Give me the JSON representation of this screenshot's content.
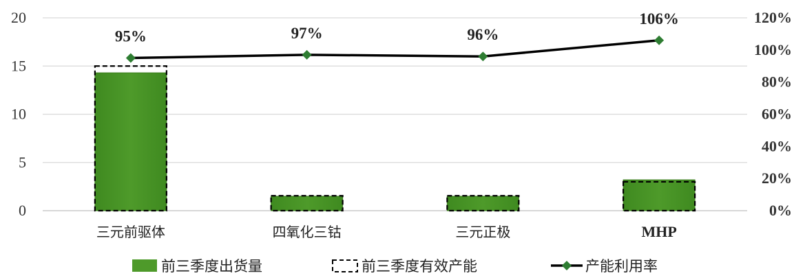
{
  "chart_data": {
    "type": "bar+line",
    "categories": [
      "三元前驱体",
      "四氧化三钴",
      "三元正极",
      "MHP"
    ],
    "series": [
      {
        "name": "前三季度出货量",
        "kind": "bar",
        "axis": "left",
        "color": "#4e9a2a",
        "values": [
          14.3,
          1.5,
          1.5,
          3.2
        ]
      },
      {
        "name": "前三季度有效产能",
        "kind": "bar-outline-dashed",
        "axis": "left",
        "color": "#000000",
        "values": [
          15.0,
          1.55,
          1.55,
          3.0
        ]
      },
      {
        "name": "产能利用率",
        "kind": "line",
        "axis": "right",
        "color": "#000000",
        "marker_color": "#2e7d32",
        "values": [
          95,
          97,
          96,
          106
        ],
        "labels": [
          "95%",
          "97%",
          "96%",
          "106%"
        ]
      }
    ],
    "left_axis": {
      "ylim": [
        0,
        20
      ],
      "ticks": [
        0,
        5,
        10,
        15,
        20
      ]
    },
    "right_axis": {
      "ylim": [
        0,
        120
      ],
      "ticks": [
        "0%",
        "20%",
        "40%",
        "60%",
        "80%",
        "100%",
        "120%"
      ]
    },
    "grid": true,
    "legend_position": "bottom"
  }
}
